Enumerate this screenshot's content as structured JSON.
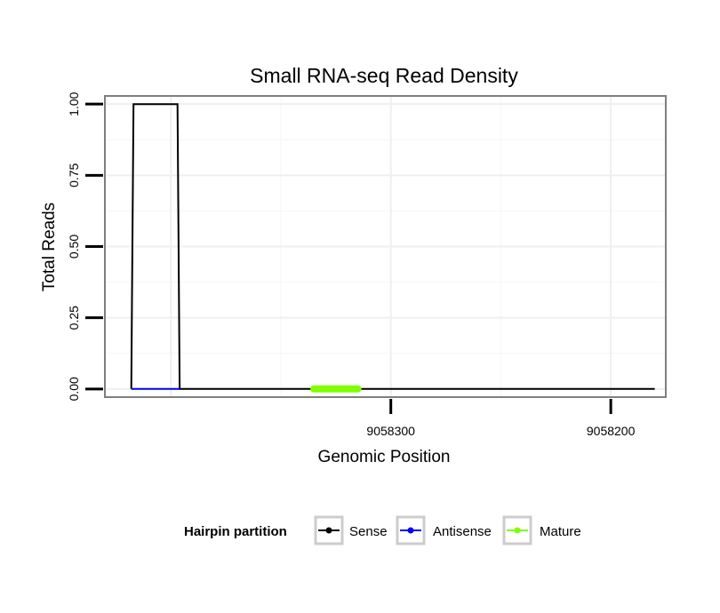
{
  "chart_data": {
    "type": "line",
    "title": "Small RNA-seq Read Density",
    "xlabel": "Genomic Position",
    "ylabel": "Total Reads",
    "xlim": [
      9058430,
      9058175
    ],
    "x_reversed": true,
    "ylim": [
      -0.0286,
      1.0286
    ],
    "x_ticks": [
      9058300,
      9058200
    ],
    "x_tick_labels": [
      "9058300",
      "9058200"
    ],
    "y_ticks": [
      0,
      0.25,
      0.5,
      0.75,
      1.0
    ],
    "y_tick_labels": [
      "0.00",
      "0.25",
      "0.50",
      "0.75",
      "1.00"
    ],
    "grid": true,
    "legend": {
      "position": "bottom",
      "title": "Hairpin partition",
      "entries": [
        {
          "label": "Sense",
          "color": "#000000"
        },
        {
          "label": "Antisense",
          "color": "#0000ff"
        },
        {
          "label": "Mature",
          "color": "#7fff00"
        }
      ]
    },
    "series": [
      {
        "name": "Sense",
        "color": "#000000",
        "x": [
          9058418,
          9058417,
          9058397,
          9058396,
          9058180
        ],
        "y": [
          0,
          1,
          1,
          0,
          0
        ]
      },
      {
        "name": "Antisense",
        "color": "#0000ff",
        "x": [
          9058418,
          9058396
        ],
        "y": [
          0,
          0
        ]
      },
      {
        "name": "Mature",
        "color": "#7fff00",
        "x": [
          9058335,
          9058315
        ],
        "y": [
          0,
          0
        ]
      }
    ]
  }
}
